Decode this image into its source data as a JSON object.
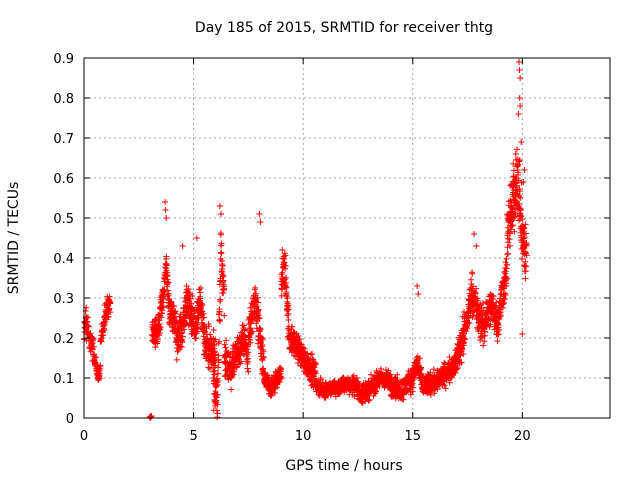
{
  "chart_data": {
    "type": "scatter",
    "title": "Day 185 of 2015, SRMTID for receiver thtg",
    "xlabel": "GPS time / hours",
    "ylabel": "SRMTID / TECUs",
    "xlim": [
      0,
      24
    ],
    "ylim": [
      0,
      0.9
    ],
    "xticks": [
      0,
      5,
      10,
      15,
      20
    ],
    "xtick_labels": [
      "0",
      "5",
      "10",
      "15",
      "20"
    ],
    "yticks": [
      0,
      0.1,
      0.2,
      0.3,
      0.4,
      0.5,
      0.6,
      0.7,
      0.8,
      0.9
    ],
    "ytick_labels": [
      "0",
      "0.1",
      "0.2",
      "0.3",
      "0.4",
      "0.5",
      "0.6",
      "0.7",
      "0.8",
      "0.9"
    ],
    "grid": true,
    "marker": "+",
    "color": "#ff0000",
    "series": [
      {
        "name": "SRMTID",
        "segments": [
          {
            "x0": 0.0,
            "x1": 0.45,
            "profile": [
              [
                0.0,
                0.22
              ],
              [
                0.1,
                0.24
              ],
              [
                0.2,
                0.21
              ],
              [
                0.3,
                0.19
              ],
              [
                0.45,
                0.17
              ]
            ],
            "spread": 0.05,
            "density": 24
          },
          {
            "x0": 0.45,
            "x1": 0.75,
            "profile": [
              [
                0.45,
                0.16
              ],
              [
                0.55,
                0.12
              ],
              [
                0.65,
                0.1
              ],
              [
                0.75,
                0.13
              ]
            ],
            "spread": 0.035,
            "density": 24
          },
          {
            "x0": 0.75,
            "x1": 1.2,
            "profile": [
              [
                0.75,
                0.18
              ],
              [
                0.9,
                0.24
              ],
              [
                1.05,
                0.27
              ],
              [
                1.2,
                0.29
              ]
            ],
            "spread": 0.04,
            "density": 24
          },
          {
            "x0": 3.0,
            "x1": 3.05,
            "profile": [
              [
                3.0,
                0.002
              ],
              [
                3.05,
                0.002
              ]
            ],
            "spread": 0.002,
            "density": 40
          },
          {
            "x0": 3.1,
            "x1": 4.2,
            "profile": [
              [
                3.1,
                0.2
              ],
              [
                3.4,
                0.22
              ],
              [
                3.6,
                0.3
              ],
              [
                3.75,
                0.38
              ],
              [
                3.9,
                0.27
              ],
              [
                4.2,
                0.22
              ]
            ],
            "spread": 0.06,
            "density": 30
          },
          {
            "x0": 4.2,
            "x1": 5.1,
            "profile": [
              [
                4.2,
                0.2
              ],
              [
                4.5,
                0.22
              ],
              [
                4.7,
                0.3
              ],
              [
                4.9,
                0.25
              ],
              [
                5.1,
                0.22
              ]
            ],
            "spread": 0.07,
            "density": 30
          },
          {
            "x0": 5.1,
            "x1": 6.0,
            "profile": [
              [
                5.1,
                0.22
              ],
              [
                5.3,
                0.3
              ],
              [
                5.5,
                0.2
              ],
              [
                5.7,
                0.17
              ],
              [
                6.0,
                0.15
              ]
            ],
            "spread": 0.07,
            "density": 30
          },
          {
            "x0": 5.9,
            "x1": 6.4,
            "profile": [
              [
                5.9,
                0.08
              ],
              [
                6.1,
                0.06
              ],
              [
                6.25,
                0.42
              ],
              [
                6.4,
                0.3
              ]
            ],
            "spread": 0.08,
            "density": 30
          },
          {
            "x0": 6.4,
            "x1": 7.5,
            "profile": [
              [
                6.4,
                0.15
              ],
              [
                6.7,
                0.12
              ],
              [
                7.0,
                0.16
              ],
              [
                7.3,
                0.2
              ],
              [
                7.5,
                0.15
              ]
            ],
            "spread": 0.06,
            "density": 30
          },
          {
            "x0": 7.5,
            "x1": 8.2,
            "profile": [
              [
                7.5,
                0.2
              ],
              [
                7.8,
                0.3
              ],
              [
                8.0,
                0.22
              ],
              [
                8.2,
                0.12
              ]
            ],
            "spread": 0.07,
            "density": 30
          },
          {
            "x0": 8.2,
            "x1": 9.0,
            "profile": [
              [
                8.2,
                0.1
              ],
              [
                8.5,
                0.07
              ],
              [
                8.8,
                0.09
              ],
              [
                9.0,
                0.12
              ]
            ],
            "spread": 0.035,
            "density": 30
          },
          {
            "x0": 9.0,
            "x1": 9.4,
            "profile": [
              [
                9.0,
                0.3
              ],
              [
                9.1,
                0.38
              ],
              [
                9.2,
                0.36
              ],
              [
                9.3,
                0.25
              ],
              [
                9.4,
                0.2
              ]
            ],
            "spread": 0.07,
            "density": 30
          },
          {
            "x0": 9.4,
            "x1": 10.6,
            "profile": [
              [
                9.4,
                0.2
              ],
              [
                9.7,
                0.18
              ],
              [
                10.0,
                0.15
              ],
              [
                10.3,
                0.13
              ],
              [
                10.6,
                0.1
              ]
            ],
            "spread": 0.05,
            "density": 30
          },
          {
            "x0": 10.6,
            "x1": 12.5,
            "profile": [
              [
                10.6,
                0.08
              ],
              [
                11.0,
                0.07
              ],
              [
                11.5,
                0.075
              ],
              [
                12.0,
                0.085
              ],
              [
                12.5,
                0.08
              ]
            ],
            "spread": 0.03,
            "density": 30
          },
          {
            "x0": 12.5,
            "x1": 14.0,
            "profile": [
              [
                12.5,
                0.06
              ],
              [
                13.0,
                0.07
              ],
              [
                13.5,
                0.1
              ],
              [
                14.0,
                0.09
              ]
            ],
            "spread": 0.035,
            "density": 30
          },
          {
            "x0": 14.0,
            "x1": 15.5,
            "profile": [
              [
                14.0,
                0.08
              ],
              [
                14.5,
                0.07
              ],
              [
                15.0,
                0.1
              ],
              [
                15.2,
                0.14
              ],
              [
                15.5,
                0.07
              ]
            ],
            "spread": 0.04,
            "density": 30
          },
          {
            "x0": 15.5,
            "x1": 17.0,
            "profile": [
              [
                15.5,
                0.08
              ],
              [
                16.0,
                0.09
              ],
              [
                16.5,
                0.11
              ],
              [
                17.0,
                0.14
              ]
            ],
            "spread": 0.04,
            "density": 30
          },
          {
            "x0": 17.0,
            "x1": 18.3,
            "profile": [
              [
                17.0,
                0.15
              ],
              [
                17.4,
                0.22
              ],
              [
                17.7,
                0.32
              ],
              [
                18.0,
                0.25
              ],
              [
                18.3,
                0.22
              ]
            ],
            "spread": 0.07,
            "density": 30
          },
          {
            "x0": 18.3,
            "x1": 19.3,
            "profile": [
              [
                18.3,
                0.25
              ],
              [
                18.6,
                0.28
              ],
              [
                18.9,
                0.24
              ],
              [
                19.1,
                0.32
              ],
              [
                19.3,
                0.36
              ]
            ],
            "spread": 0.07,
            "density": 30
          },
          {
            "x0": 19.3,
            "x1": 20.2,
            "profile": [
              [
                19.3,
                0.45
              ],
              [
                19.6,
                0.55
              ],
              [
                19.8,
                0.6
              ],
              [
                20.0,
                0.45
              ],
              [
                20.2,
                0.4
              ]
            ],
            "spread": 0.12,
            "density": 34
          }
        ],
        "outliers": [
          [
            3.7,
            0.54
          ],
          [
            3.72,
            0.52
          ],
          [
            3.75,
            0.5
          ],
          [
            6.2,
            0.53
          ],
          [
            6.25,
            0.51
          ],
          [
            8.0,
            0.51
          ],
          [
            8.05,
            0.49
          ],
          [
            9.05,
            0.42
          ],
          [
            4.5,
            0.43
          ],
          [
            5.15,
            0.45
          ],
          [
            15.2,
            0.33
          ],
          [
            15.25,
            0.31
          ],
          [
            17.8,
            0.46
          ],
          [
            17.9,
            0.43
          ],
          [
            19.85,
            0.89
          ],
          [
            19.87,
            0.87
          ],
          [
            19.9,
            0.85
          ],
          [
            19.88,
            0.8
          ],
          [
            19.9,
            0.78
          ],
          [
            19.82,
            0.76
          ],
          [
            19.95,
            0.69
          ],
          [
            19.7,
            0.66
          ],
          [
            19.75,
            0.63
          ],
          [
            20.1,
            0.62
          ],
          [
            20.05,
            0.59
          ],
          [
            19.6,
            0.58
          ],
          [
            19.4,
            0.5
          ],
          [
            19.5,
            0.48
          ],
          [
            20.0,
            0.21
          ],
          [
            3.05,
            0.005
          ],
          [
            3.08,
            0.005
          ]
        ]
      }
    ]
  }
}
